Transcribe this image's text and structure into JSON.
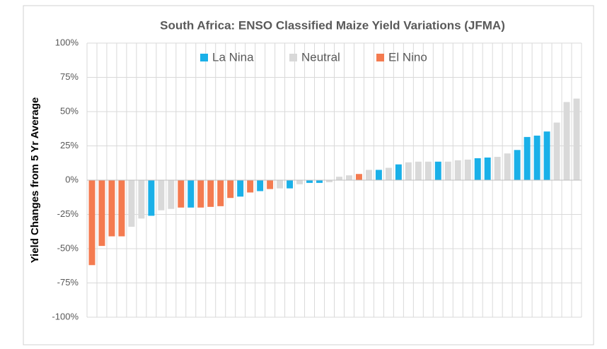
{
  "chart_data": {
    "type": "bar",
    "title": "South Africa: ENSO Classified Maize Yield Variations (JFMA)",
    "y_label": "Yield Changes from 5 Yr Average",
    "ylim": [
      -100,
      100
    ],
    "yticks": [
      {
        "value": -100,
        "label": "-100%"
      },
      {
        "value": -75,
        "label": "-75%"
      },
      {
        "value": -50,
        "label": "-50%"
      },
      {
        "value": -25,
        "label": "-25%"
      },
      {
        "value": 0,
        "label": "0%"
      },
      {
        "value": 25,
        "label": "25%"
      },
      {
        "value": 50,
        "label": "50%"
      },
      {
        "value": 75,
        "label": "75%"
      },
      {
        "value": 100,
        "label": "100%"
      }
    ],
    "grid": true,
    "legend": "top",
    "series": [
      {
        "name": "La Nina",
        "color": "#1ab0e8",
        "values": [
          null,
          null,
          null,
          null,
          null,
          null,
          -26,
          null,
          null,
          null,
          -20,
          null,
          null,
          null,
          null,
          -12,
          null,
          -8,
          null,
          null,
          -6,
          null,
          -2,
          -2,
          null,
          null,
          null,
          null,
          null,
          7.5,
          null,
          11.5,
          null,
          null,
          null,
          13.5,
          null,
          null,
          null,
          16,
          16.5,
          null,
          null,
          22,
          31.5,
          32.5,
          35.5,
          null,
          null,
          null
        ]
      },
      {
        "name": "Neutral",
        "color": "#d9d9d9",
        "values": [
          null,
          null,
          null,
          null,
          -34,
          -28,
          null,
          -22,
          -21,
          null,
          null,
          null,
          null,
          null,
          null,
          null,
          null,
          null,
          null,
          -6,
          null,
          -3,
          null,
          null,
          -1.5,
          2.5,
          3.5,
          null,
          7.5,
          null,
          9,
          null,
          13,
          13.5,
          13.5,
          null,
          13.5,
          14.5,
          15,
          null,
          null,
          17,
          19.5,
          null,
          null,
          null,
          null,
          42,
          57,
          59.5
        ]
      },
      {
        "name": "El Nino",
        "color": "#f47b50",
        "values": [
          -62,
          -48,
          -41,
          -41,
          null,
          null,
          null,
          null,
          null,
          -20,
          null,
          -20,
          -19.5,
          -19,
          -13,
          null,
          -9,
          null,
          -6.5,
          null,
          null,
          null,
          null,
          null,
          null,
          null,
          null,
          4.5,
          null,
          null,
          null,
          null,
          null,
          null,
          null,
          null,
          null,
          null,
          null,
          null,
          null,
          null,
          null,
          null,
          null,
          null,
          null,
          null,
          null,
          null
        ]
      }
    ]
  }
}
